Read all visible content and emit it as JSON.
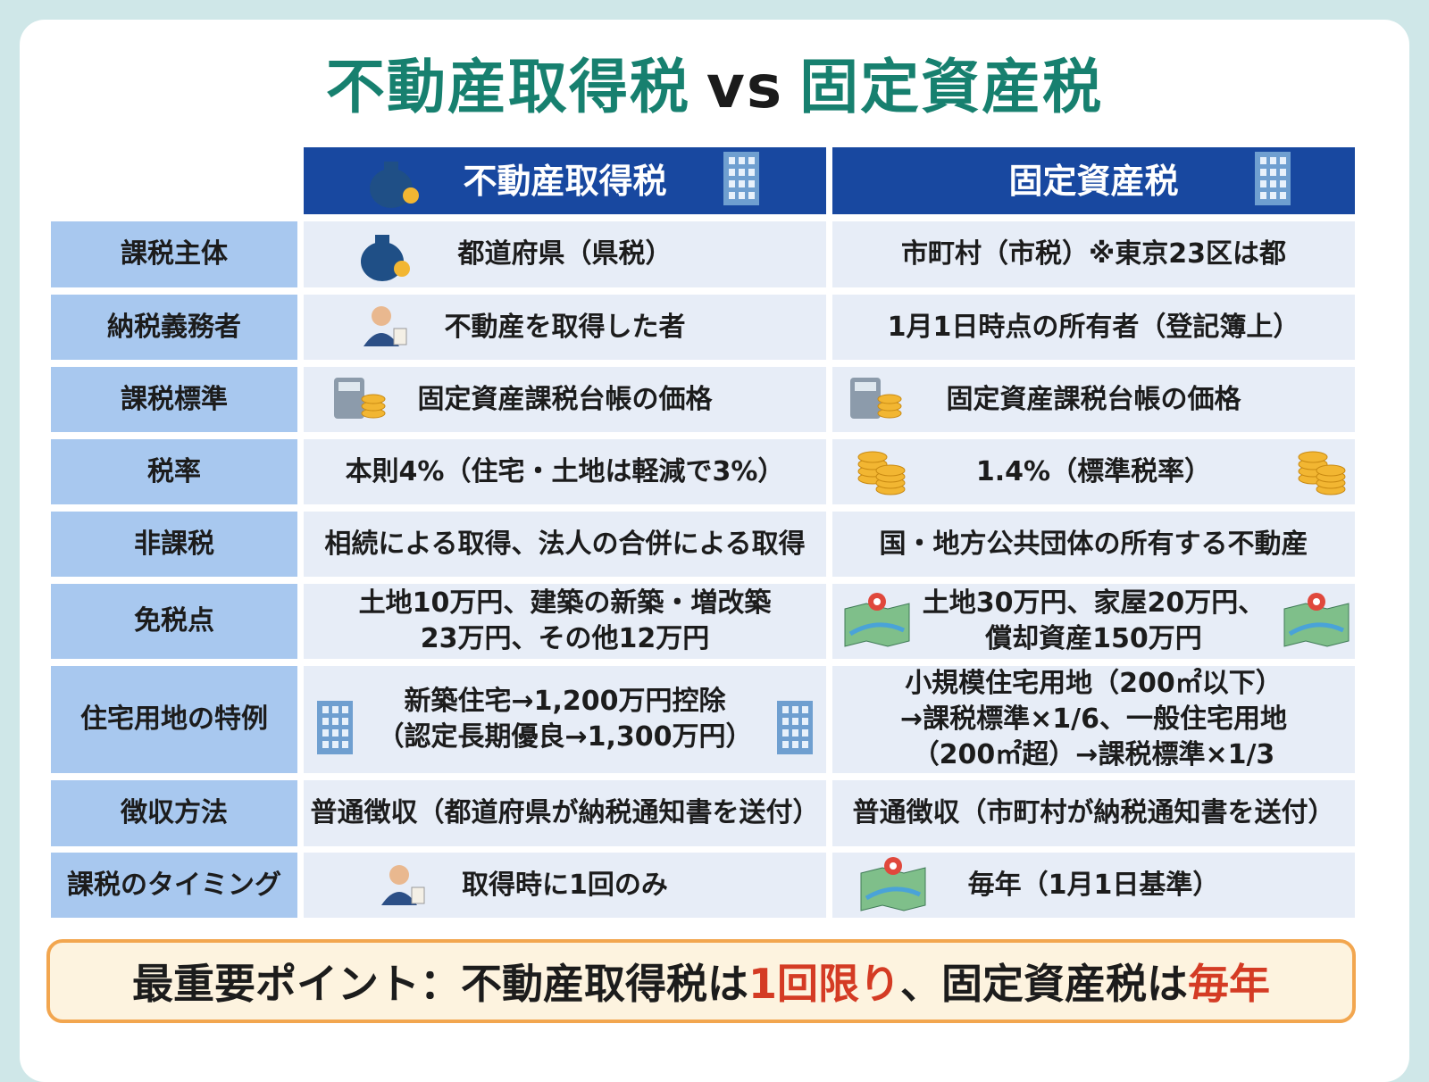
{
  "title": {
    "parts": [
      "不動産取得税",
      "vs",
      "固定資産税"
    ]
  },
  "table": {
    "columns": [
      "不動産取得税",
      "固定資産税"
    ],
    "rows": [
      {
        "label": "課税主体",
        "cells": [
          [
            "都道府県（県税）"
          ],
          [
            "市町村（市税）※東京23区は都"
          ]
        ]
      },
      {
        "label": "納税義務者",
        "cells": [
          [
            "不動産を取得した者"
          ],
          [
            "1月1日時点の所有者（登記簿上）"
          ]
        ]
      },
      {
        "label": "課税標準",
        "cells": [
          [
            "固定資産課税台帳の価格"
          ],
          [
            "固定資産課税台帳の価格"
          ]
        ]
      },
      {
        "label": "税率",
        "cells": [
          [
            "本則4%（住宅・土地は軽減で3%）"
          ],
          [
            "1.4%（標準税率）"
          ]
        ]
      },
      {
        "label": "非課税",
        "cells": [
          [
            "相続による取得、法人の合併による取得"
          ],
          [
            "国・地方公共団体の所有する不動産"
          ]
        ]
      },
      {
        "label": "免税点",
        "cells": [
          [
            "土地10万円、建築の新築・増改築",
            "23万円、その他12万円"
          ],
          [
            "土地30万円、家屋20万円、",
            "償却資産150万円"
          ]
        ]
      },
      {
        "label": "住宅用地の特例",
        "cells": [
          [
            "新築住宅→1,200万円控除",
            "（認定長期優良→1,300万円）"
          ],
          [
            "小規模住宅用地（200㎡以下）",
            "→課税標準×1/6、一般住宅用地",
            "（200㎡超）→課税標準×1/3"
          ]
        ]
      },
      {
        "label": "徴収方法",
        "cells": [
          [
            "普通徴収（都道府県が納税通知書を送付）"
          ],
          [
            "普通徴収（市町村が納税通知書を送付）"
          ]
        ]
      },
      {
        "label": "課税のタイミング",
        "cells": [
          [
            "取得時に1回のみ"
          ],
          [
            "毎年（1月1日基準）"
          ]
        ]
      }
    ]
  },
  "note": {
    "parts": [
      "最重要ポイント：不動産取得税は",
      "1回限り",
      "、固定資産税は",
      "毎年"
    ]
  }
}
